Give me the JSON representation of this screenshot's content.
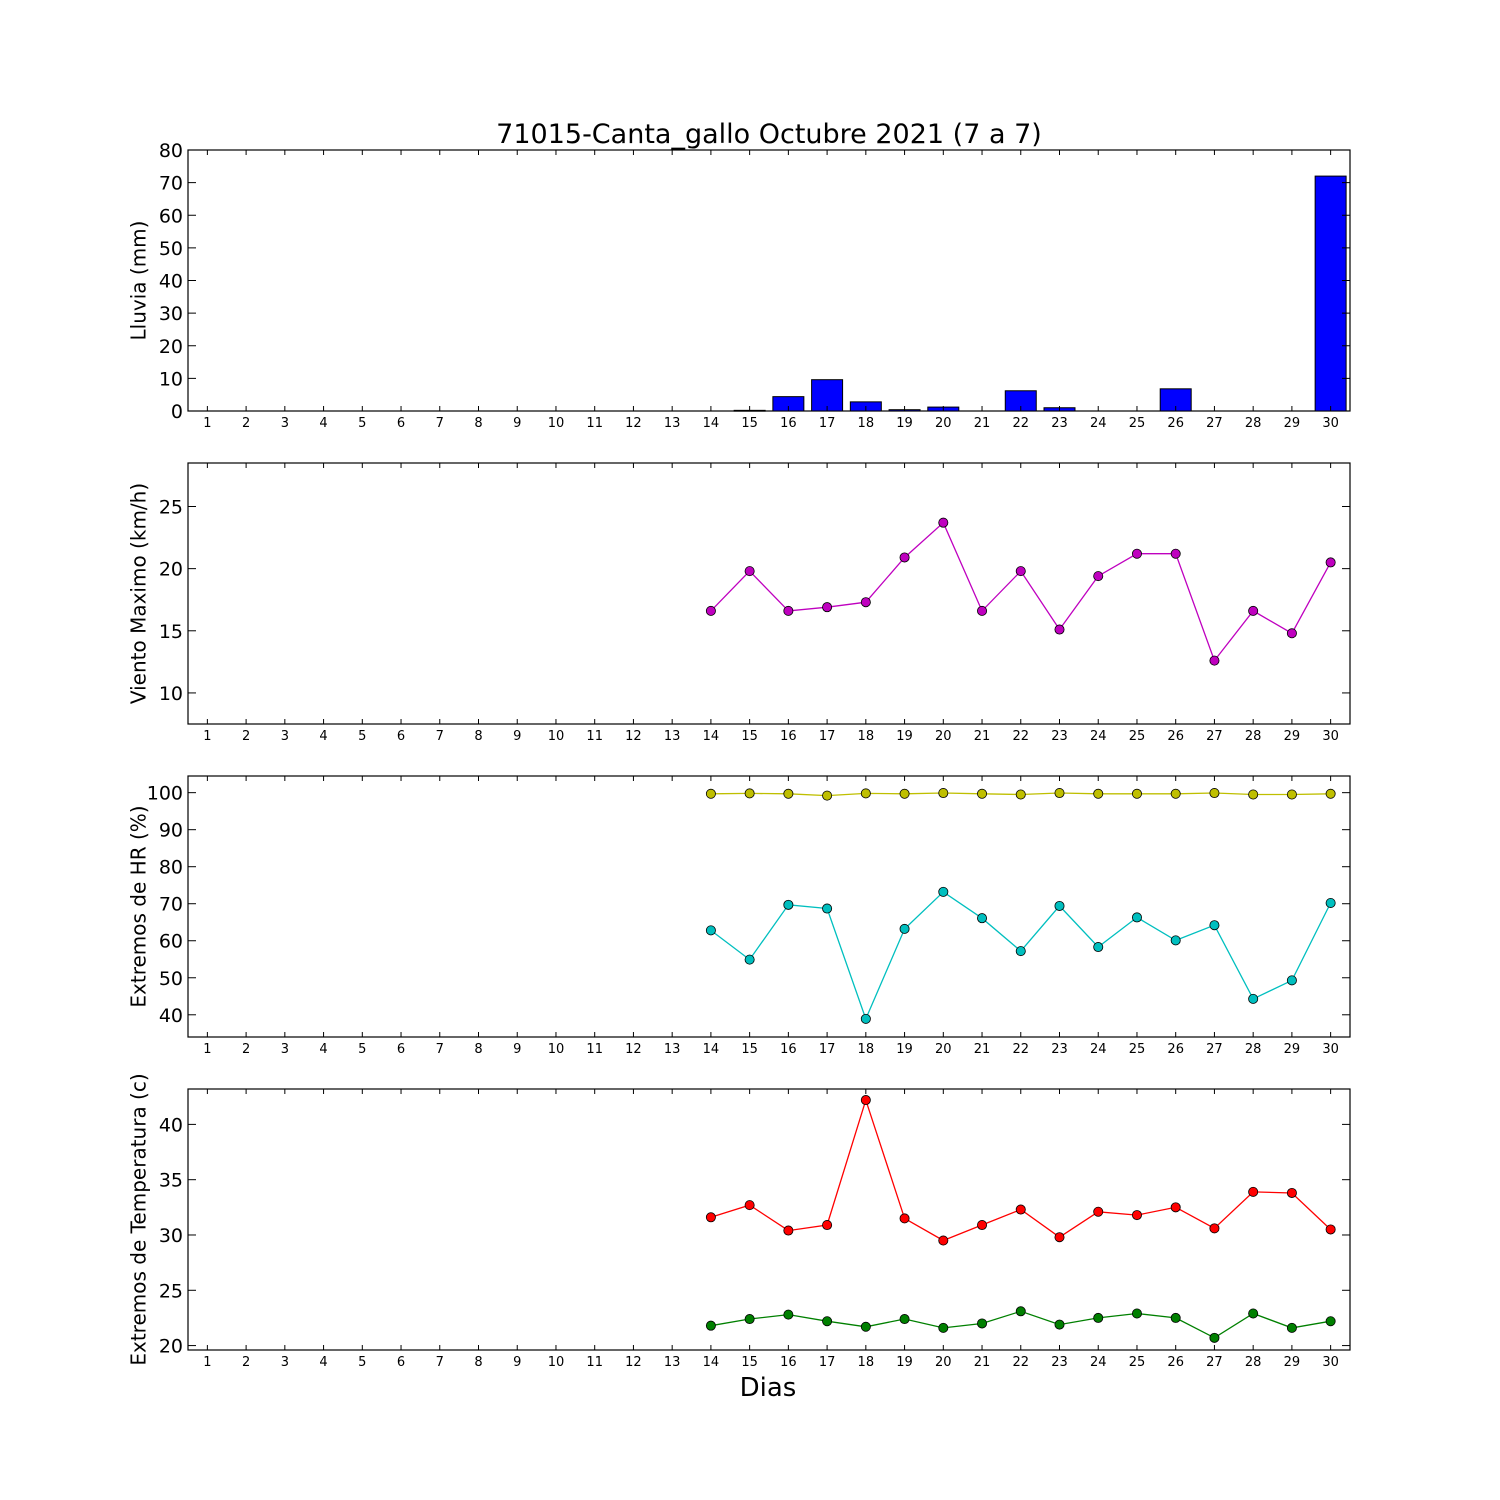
{
  "chart_data": [
    {
      "type": "bar",
      "title": "71015-Canta_gallo Octubre 2021  (7 a 7)",
      "ylabel": "Lluvia (mm)",
      "xlabel": "",
      "categories": [
        1,
        2,
        3,
        4,
        5,
        6,
        7,
        8,
        9,
        10,
        11,
        12,
        13,
        14,
        15,
        16,
        17,
        18,
        19,
        20,
        21,
        22,
        23,
        24,
        25,
        26,
        27,
        28,
        29,
        30
      ],
      "values": [
        0,
        0,
        0,
        0,
        0,
        0,
        0,
        0,
        0,
        0,
        0,
        0,
        0,
        0,
        0.2,
        4.4,
        9.6,
        2.8,
        0.4,
        1.2,
        0,
        6.2,
        1.0,
        0,
        0,
        6.8,
        0,
        0,
        0,
        72
      ],
      "ylim": [
        0,
        80
      ],
      "yticks": [
        0,
        10,
        20,
        30,
        40,
        50,
        60,
        70,
        80
      ],
      "colors": {
        "bar": "#0000ff"
      }
    },
    {
      "type": "line",
      "ylabel": "Viento Maximo (km/h)",
      "xticks": [
        1,
        2,
        3,
        4,
        5,
        6,
        7,
        8,
        9,
        10,
        11,
        12,
        13,
        14,
        15,
        16,
        17,
        18,
        19,
        20,
        21,
        22,
        23,
        24,
        25,
        26,
        27,
        28,
        29,
        30
      ],
      "x": [
        14,
        15,
        16,
        17,
        18,
        19,
        20,
        21,
        22,
        23,
        24,
        25,
        26,
        27,
        28,
        29,
        30
      ],
      "series": [
        {
          "color": "#bf00bf",
          "values": [
            16.6,
            19.8,
            16.6,
            16.9,
            17.3,
            20.9,
            23.7,
            16.6,
            19.8,
            15.1,
            19.4,
            21.2,
            21.2,
            12.6,
            16.6,
            14.8,
            20.5
          ]
        }
      ],
      "ylim": [
        7.5,
        28.5
      ],
      "yticks": [
        10,
        15,
        20,
        25
      ]
    },
    {
      "type": "line",
      "ylabel": "Extremos de HR (%)",
      "xticks": [
        1,
        2,
        3,
        4,
        5,
        6,
        7,
        8,
        9,
        10,
        11,
        12,
        13,
        14,
        15,
        16,
        17,
        18,
        19,
        20,
        21,
        22,
        23,
        24,
        25,
        26,
        27,
        28,
        29,
        30
      ],
      "x": [
        14,
        15,
        16,
        17,
        18,
        19,
        20,
        21,
        22,
        23,
        24,
        25,
        26,
        27,
        28,
        29,
        30
      ],
      "series": [
        {
          "color": "#bfbf00",
          "values": [
            99.7,
            99.8,
            99.7,
            99.2,
            99.8,
            99.7,
            99.9,
            99.7,
            99.5,
            99.9,
            99.7,
            99.7,
            99.7,
            99.9,
            99.5,
            99.5,
            99.7
          ]
        },
        {
          "color": "#00bfbf",
          "values": [
            62.8,
            54.9,
            69.7,
            68.7,
            38.9,
            63.2,
            73.2,
            66.1,
            57.2,
            69.4,
            58.3,
            66.3,
            60.1,
            64.2,
            44.3,
            49.3,
            70.2
          ]
        }
      ],
      "ylim": [
        34,
        104.5
      ],
      "yticks": [
        40,
        50,
        60,
        70,
        80,
        90,
        100
      ]
    },
    {
      "type": "line",
      "ylabel": "Extremos de Temperatura (c)",
      "xlabel": "Dias",
      "xticks": [
        1,
        2,
        3,
        4,
        5,
        6,
        7,
        8,
        9,
        10,
        11,
        12,
        13,
        14,
        15,
        16,
        17,
        18,
        19,
        20,
        21,
        22,
        23,
        24,
        25,
        26,
        27,
        28,
        29,
        30
      ],
      "x": [
        14,
        15,
        16,
        17,
        18,
        19,
        20,
        21,
        22,
        23,
        24,
        25,
        26,
        27,
        28,
        29,
        30
      ],
      "series": [
        {
          "color": "#ff0000",
          "values": [
            31.6,
            32.7,
            30.4,
            30.9,
            42.2,
            31.5,
            29.5,
            30.9,
            32.3,
            29.8,
            32.1,
            31.8,
            32.5,
            30.6,
            33.9,
            33.8,
            30.5
          ]
        },
        {
          "color": "#008000",
          "values": [
            21.8,
            22.4,
            22.8,
            22.2,
            21.7,
            22.4,
            21.6,
            22.0,
            23.1,
            21.9,
            22.5,
            22.9,
            22.5,
            20.7,
            22.9,
            21.6,
            22.2
          ]
        }
      ],
      "ylim": [
        19.6,
        43.2
      ],
      "yticks": [
        20,
        25,
        30,
        35,
        40
      ]
    }
  ]
}
